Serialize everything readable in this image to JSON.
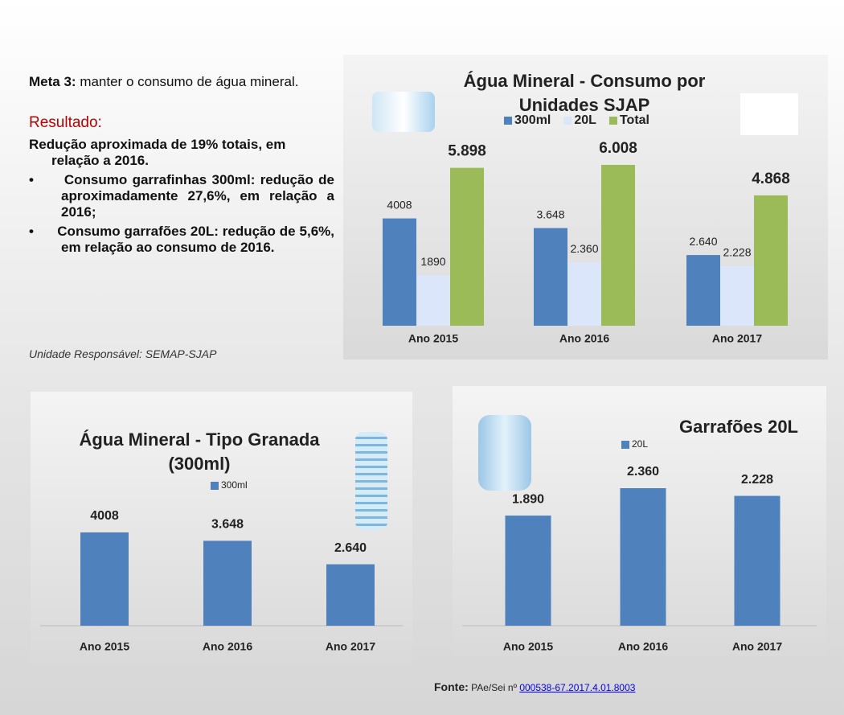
{
  "meta": {
    "label": "Meta 3:",
    "text": "manter o consumo de água mineral."
  },
  "result": {
    "title": "Resultado:",
    "summary": "Redução aproximada de 19% totais, em relação a 2016.",
    "bullets": [
      "Consumo garrafinhas 300ml: redução de aproximadamente 27,6%, em relação a 2016;",
      "Consumo garrafões 20L: redução de 5,6%, em relação ao consumo de 2016."
    ]
  },
  "unit": "Unidade Responsável: SEMAP-SJAP",
  "footer": {
    "label": "Fonte:",
    "text": "PAe/Sei nº",
    "link": "000538-67.2017.4.01.8003"
  },
  "chart_data": [
    {
      "type": "bar",
      "title": "Água Mineral - Consumo por Unidades SJAP",
      "categories": [
        "Ano 2015",
        "Ano 2016",
        "Ano 2017"
      ],
      "series": [
        {
          "name": "300ml",
          "color": "#4f81bd",
          "values": [
            4008,
            3648,
            2640
          ],
          "value_labels": [
            "4008",
            "3.648",
            "2.640"
          ]
        },
        {
          "name": "20L",
          "color": "#dbe6fa",
          "values": [
            1890,
            2360,
            2228
          ],
          "value_labels": [
            "1890",
            "2.360",
            "2.228"
          ]
        },
        {
          "name": "Total",
          "color": "#9bbb59",
          "values": [
            5898,
            6008,
            4868
          ],
          "value_labels": [
            "5.898",
            "6.008",
            "4.868"
          ]
        }
      ]
    },
    {
      "type": "bar",
      "title": "Água Mineral - Tipo Granada (300ml)",
      "categories": [
        "Ano 2015",
        "Ano 2016",
        "Ano 2017"
      ],
      "series": [
        {
          "name": "300ml",
          "color": "#4f81bd",
          "values": [
            4008,
            3648,
            2640
          ],
          "value_labels": [
            "4008",
            "3.648",
            "2.640"
          ]
        }
      ]
    },
    {
      "type": "bar",
      "title": "Garrafões 20L",
      "categories": [
        "Ano 2015",
        "Ano 2016",
        "Ano 2017"
      ],
      "series": [
        {
          "name": "20L",
          "color": "#4f81bd",
          "values": [
            1890,
            2360,
            2228
          ],
          "value_labels": [
            "1.890",
            "2.360",
            "2.228"
          ]
        }
      ]
    }
  ]
}
